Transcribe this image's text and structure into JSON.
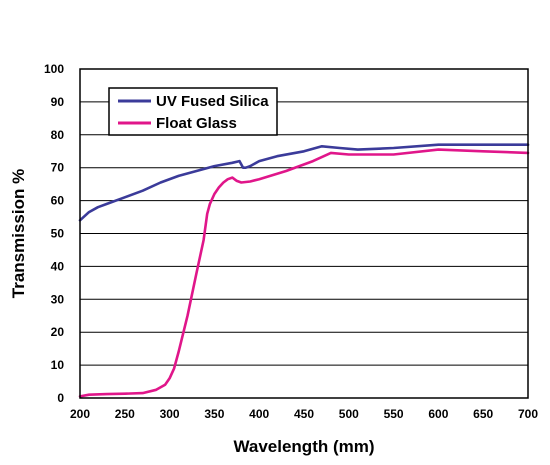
{
  "chart_data": {
    "type": "line",
    "xlabel": "Wavelength (mm)",
    "ylabel": "Transmission %",
    "xlim": [
      200,
      700
    ],
    "ylim": [
      0,
      100
    ],
    "xticks": [
      200,
      250,
      300,
      350,
      400,
      450,
      500,
      550,
      600,
      650,
      700
    ],
    "yticks": [
      0,
      10,
      20,
      30,
      40,
      50,
      60,
      70,
      80,
      90,
      100
    ],
    "grid": "horizontal",
    "legend_position": "top-left",
    "series": [
      {
        "name": "UV Fused Silica",
        "color": "#3b3b9a",
        "x": [
          200,
          210,
          220,
          230,
          250,
          270,
          290,
          310,
          330,
          350,
          370,
          378,
          382,
          385,
          390,
          400,
          420,
          450,
          470,
          490,
          510,
          550,
          600,
          650,
          700
        ],
        "y": [
          54,
          56.5,
          58,
          59,
          61,
          63,
          65.5,
          67.5,
          69,
          70.5,
          71.5,
          72,
          70,
          70,
          70.5,
          72,
          73.5,
          75,
          76.5,
          76,
          75.5,
          76,
          77,
          77,
          77
        ]
      },
      {
        "name": "Float Glass",
        "color": "#e0168a",
        "x": [
          200,
          210,
          230,
          250,
          270,
          285,
          295,
          300,
          305,
          310,
          320,
          330,
          338,
          342,
          345,
          350,
          355,
          360,
          365,
          370,
          375,
          380,
          390,
          400,
          430,
          460,
          480,
          500,
          550,
          600,
          650,
          700
        ],
        "y": [
          0.5,
          1,
          1.2,
          1.3,
          1.5,
          2.5,
          4,
          6,
          9,
          14,
          25,
          38,
          48,
          56,
          59,
          62,
          64,
          65.5,
          66.5,
          67,
          66,
          65.5,
          65.8,
          66.5,
          69,
          72,
          74.5,
          74,
          74,
          75.5,
          75,
          74.5
        ]
      }
    ]
  }
}
